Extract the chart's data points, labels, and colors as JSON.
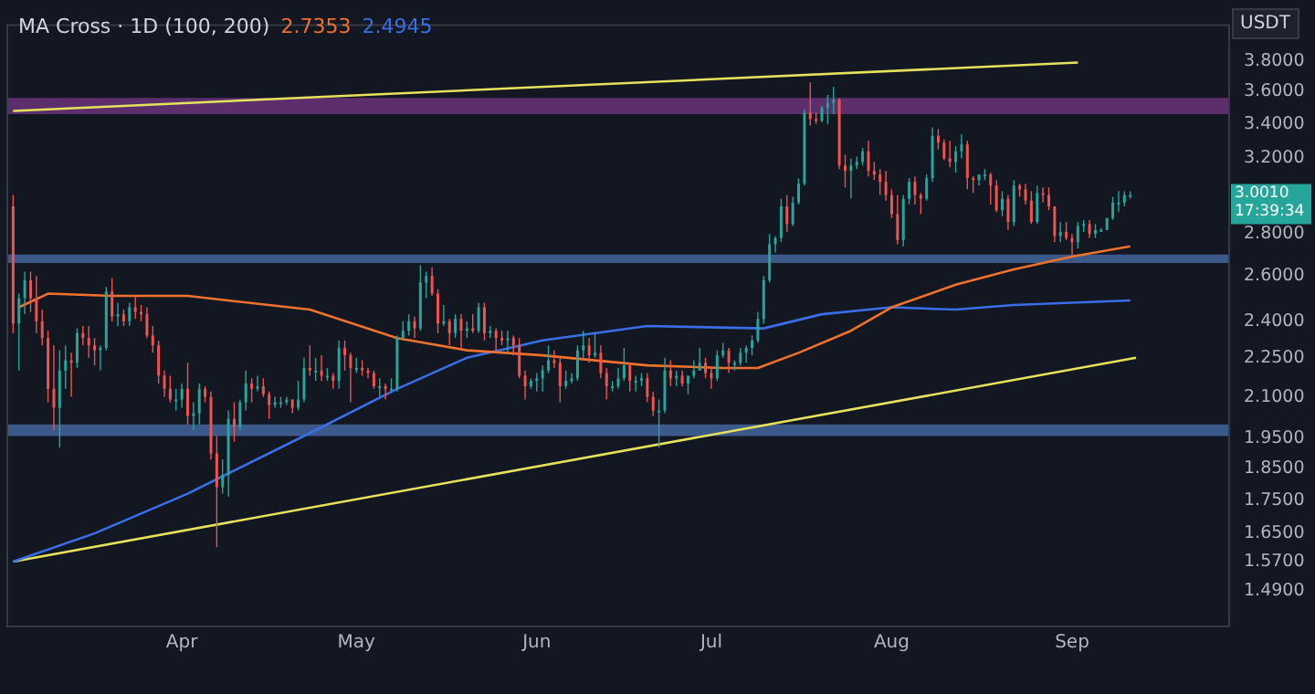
{
  "chart_data": {
    "type": "candlestick",
    "title": "MA Cross · 1D (100, 200)",
    "ylabel": "USDT",
    "log": "y",
    "legend": "top left",
    "ylim": [
      1.4,
      4.05
    ],
    "yticks": [
      {
        "value": 3.8,
        "label": "3.8000"
      },
      {
        "value": 3.6,
        "label": "3.6000"
      },
      {
        "value": 3.4,
        "label": "3.4000"
      },
      {
        "value": 3.2,
        "label": "3.2000"
      },
      {
        "value": 2.8,
        "label": "2.8000"
      },
      {
        "value": 2.6,
        "label": "2.6000"
      },
      {
        "value": 2.4,
        "label": "2.4000"
      },
      {
        "value": 2.25,
        "label": "2.2500"
      },
      {
        "value": 2.1,
        "label": "2.1000"
      },
      {
        "value": 1.95,
        "label": "1.9500"
      },
      {
        "value": 1.85,
        "label": "1.8500"
      },
      {
        "value": 1.75,
        "label": "1.7500"
      },
      {
        "value": 1.65,
        "label": "1.6500"
      },
      {
        "value": 1.57,
        "label": "1.5700"
      },
      {
        "value": 1.49,
        "label": "1.4900"
      }
    ],
    "xlim": [
      "--03-02",
      "--09-28"
    ],
    "xticks": [
      {
        "value": "--04-01",
        "label": "Apr"
      },
      {
        "value": "--05-01",
        "label": "May"
      },
      {
        "value": "--06-01",
        "label": "Jun"
      },
      {
        "value": "--07-01",
        "label": "Jul"
      },
      {
        "value": "--08-01",
        "label": "Aug"
      },
      {
        "value": "--09-01",
        "label": "Sep"
      }
    ],
    "x": [
      "--03-03",
      "--03-04",
      "--03-05",
      "--03-06",
      "--03-07",
      "--03-08",
      "--03-09",
      "--03-10",
      "--03-11",
      "--03-12",
      "--03-13",
      "--03-14",
      "--03-15",
      "--03-16",
      "--03-17",
      "--03-18",
      "--03-19",
      "--03-20",
      "--03-21",
      "--03-22",
      "--03-23",
      "--03-24",
      "--03-25",
      "--03-26",
      "--03-27",
      "--03-28",
      "--03-29",
      "--03-30",
      "--03-31",
      "--04-01",
      "--04-02",
      "--04-03",
      "--04-04",
      "--04-05",
      "--04-06",
      "--04-07",
      "--04-08",
      "--04-09",
      "--04-10",
      "--04-11",
      "--04-12",
      "--04-13",
      "--04-14",
      "--04-15",
      "--04-16",
      "--04-17",
      "--04-18",
      "--04-19",
      "--04-20",
      "--04-21",
      "--04-22",
      "--04-23",
      "--04-24",
      "--04-25",
      "--04-26",
      "--04-27",
      "--04-28",
      "--04-29",
      "--04-30",
      "--05-01",
      "--05-02",
      "--05-03",
      "--05-04",
      "--05-05",
      "--05-06",
      "--05-07",
      "--05-08",
      "--05-09",
      "--05-10",
      "--05-11",
      "--05-12",
      "--05-13",
      "--05-14",
      "--05-15",
      "--05-16",
      "--05-17",
      "--05-18",
      "--05-19",
      "--05-20",
      "--05-21",
      "--05-22",
      "--05-23",
      "--05-24",
      "--05-25",
      "--05-26",
      "--05-27",
      "--05-28",
      "--05-29",
      "--05-30",
      "--05-31",
      "--06-01",
      "--06-02",
      "--06-03",
      "--06-04",
      "--06-05",
      "--06-06",
      "--06-07",
      "--06-08",
      "--06-09",
      "--06-10",
      "--06-11",
      "--06-12",
      "--06-13",
      "--06-14",
      "--06-15",
      "--06-16",
      "--06-17",
      "--06-18",
      "--06-19",
      "--06-20",
      "--06-21",
      "--06-22",
      "--06-23",
      "--06-24",
      "--06-25",
      "--06-26",
      "--06-27",
      "--06-28",
      "--06-29",
      "--06-30",
      "--07-01",
      "--07-02",
      "--07-03",
      "--07-04",
      "--07-05",
      "--07-06",
      "--07-07",
      "--07-08",
      "--07-09",
      "--07-10",
      "--07-11",
      "--07-12",
      "--07-13",
      "--07-14",
      "--07-15",
      "--07-16",
      "--07-17",
      "--07-18",
      "--07-19",
      "--07-20",
      "--07-21",
      "--07-22",
      "--07-23",
      "--07-24",
      "--07-25",
      "--07-26",
      "--07-27",
      "--07-28",
      "--07-29",
      "--07-30",
      "--07-31",
      "--08-01",
      "--08-02",
      "--08-03",
      "--08-04",
      "--08-05",
      "--08-06",
      "--08-07",
      "--08-08",
      "--08-09",
      "--08-10",
      "--08-11",
      "--08-12",
      "--08-13",
      "--08-14",
      "--08-15",
      "--08-16",
      "--08-17",
      "--08-18",
      "--08-19",
      "--08-20",
      "--08-21",
      "--08-22",
      "--08-23",
      "--08-24",
      "--08-25",
      "--08-26",
      "--08-27",
      "--08-28",
      "--08-29",
      "--08-30",
      "--08-31",
      "--09-01",
      "--09-02",
      "--09-03",
      "--09-04",
      "--09-05",
      "--09-06",
      "--09-07",
      "--09-08",
      "--09-09",
      "--09-10",
      "--09-11"
    ],
    "ohlc": [
      [
        2.94,
        3.0,
        2.35,
        2.39
      ],
      [
        2.39,
        2.52,
        2.2,
        2.5
      ],
      [
        2.5,
        2.62,
        2.43,
        2.58
      ],
      [
        2.58,
        2.62,
        2.44,
        2.5
      ],
      [
        2.5,
        2.6,
        2.35,
        2.4
      ],
      [
        2.4,
        2.45,
        2.3,
        2.33
      ],
      [
        2.33,
        2.36,
        2.08,
        2.13
      ],
      [
        2.13,
        2.3,
        1.98,
        2.06
      ],
      [
        2.06,
        2.28,
        1.92,
        2.2
      ],
      [
        2.2,
        2.3,
        2.13,
        2.24
      ],
      [
        2.24,
        2.27,
        2.1,
        2.23
      ],
      [
        2.23,
        2.37,
        2.21,
        2.35
      ],
      [
        2.35,
        2.38,
        2.3,
        2.33
      ],
      [
        2.33,
        2.38,
        2.25,
        2.3
      ],
      [
        2.3,
        2.33,
        2.22,
        2.28
      ],
      [
        2.28,
        2.3,
        2.2,
        2.29
      ],
      [
        2.29,
        2.55,
        2.28,
        2.53
      ],
      [
        2.53,
        2.59,
        2.4,
        2.42
      ],
      [
        2.42,
        2.48,
        2.38,
        2.43
      ],
      [
        2.43,
        2.45,
        2.38,
        2.4
      ],
      [
        2.4,
        2.48,
        2.38,
        2.46
      ],
      [
        2.46,
        2.51,
        2.41,
        2.44
      ],
      [
        2.44,
        2.47,
        2.4,
        2.43
      ],
      [
        2.43,
        2.46,
        2.33,
        2.34
      ],
      [
        2.34,
        2.38,
        2.27,
        2.3
      ],
      [
        2.3,
        2.32,
        2.15,
        2.18
      ],
      [
        2.18,
        2.2,
        2.1,
        2.13
      ],
      [
        2.13,
        2.18,
        2.08,
        2.09
      ],
      [
        2.09,
        2.13,
        2.05,
        2.09
      ],
      [
        2.09,
        2.15,
        2.06,
        2.13
      ],
      [
        2.13,
        2.23,
        2.0,
        2.03
      ],
      [
        2.03,
        2.08,
        1.98,
        2.04
      ],
      [
        2.04,
        2.15,
        2.0,
        2.13
      ],
      [
        2.13,
        2.14,
        2.08,
        2.1
      ],
      [
        2.1,
        2.12,
        1.88,
        1.9
      ],
      [
        1.9,
        1.96,
        1.61,
        1.79
      ],
      [
        1.79,
        1.88,
        1.77,
        1.83
      ],
      [
        1.83,
        2.05,
        1.76,
        2.02
      ],
      [
        2.02,
        2.08,
        1.94,
        1.99
      ],
      [
        1.99,
        2.09,
        1.98,
        2.08
      ],
      [
        2.08,
        2.2,
        2.05,
        2.15
      ],
      [
        2.15,
        2.17,
        2.08,
        2.13
      ],
      [
        2.13,
        2.18,
        2.12,
        2.14
      ],
      [
        2.14,
        2.17,
        2.1,
        2.11
      ],
      [
        2.11,
        2.12,
        2.02,
        2.07
      ],
      [
        2.07,
        2.1,
        2.06,
        2.08
      ],
      [
        2.08,
        2.1,
        2.06,
        2.08
      ],
      [
        2.08,
        2.1,
        2.07,
        2.09
      ],
      [
        2.09,
        2.09,
        2.04,
        2.06
      ],
      [
        2.06,
        2.16,
        2.05,
        2.09
      ],
      [
        2.09,
        2.25,
        2.08,
        2.21
      ],
      [
        2.21,
        2.3,
        2.18,
        2.2
      ],
      [
        2.2,
        2.25,
        2.16,
        2.2
      ],
      [
        2.2,
        2.26,
        2.16,
        2.18
      ],
      [
        2.18,
        2.21,
        2.16,
        2.18
      ],
      [
        2.18,
        2.19,
        2.13,
        2.16
      ],
      [
        2.16,
        2.32,
        2.13,
        2.29
      ],
      [
        2.29,
        2.32,
        2.2,
        2.26
      ],
      [
        2.26,
        2.27,
        2.08,
        2.21
      ],
      [
        2.21,
        2.25,
        2.19,
        2.21
      ],
      [
        2.21,
        2.24,
        2.18,
        2.2
      ],
      [
        2.2,
        2.21,
        2.17,
        2.19
      ],
      [
        2.19,
        2.2,
        2.13,
        2.14
      ],
      [
        2.14,
        2.17,
        2.1,
        2.14
      ],
      [
        2.14,
        2.15,
        2.09,
        2.13
      ],
      [
        2.13,
        2.17,
        2.12,
        2.13
      ],
      [
        2.13,
        2.34,
        2.12,
        2.33
      ],
      [
        2.33,
        2.4,
        2.32,
        2.36
      ],
      [
        2.36,
        2.43,
        2.34,
        2.4
      ],
      [
        2.4,
        2.42,
        2.33,
        2.37
      ],
      [
        2.37,
        2.65,
        2.36,
        2.57
      ],
      [
        2.57,
        2.62,
        2.5,
        2.6
      ],
      [
        2.6,
        2.64,
        2.51,
        2.52
      ],
      [
        2.52,
        2.54,
        2.35,
        2.39
      ],
      [
        2.39,
        2.47,
        2.38,
        2.4
      ],
      [
        2.4,
        2.41,
        2.3,
        2.35
      ],
      [
        2.35,
        2.43,
        2.33,
        2.41
      ],
      [
        2.41,
        2.43,
        2.28,
        2.36
      ],
      [
        2.36,
        2.4,
        2.33,
        2.37
      ],
      [
        2.37,
        2.43,
        2.35,
        2.36
      ],
      [
        2.36,
        2.48,
        2.35,
        2.46
      ],
      [
        2.46,
        2.48,
        2.32,
        2.35
      ],
      [
        2.35,
        2.38,
        2.33,
        2.36
      ],
      [
        2.36,
        2.37,
        2.27,
        2.33
      ],
      [
        2.33,
        2.36,
        2.3,
        2.32
      ],
      [
        2.32,
        2.36,
        2.27,
        2.33
      ],
      [
        2.33,
        2.34,
        2.26,
        2.3
      ],
      [
        2.3,
        2.33,
        2.17,
        2.18
      ],
      [
        2.18,
        2.2,
        2.09,
        2.14
      ],
      [
        2.14,
        2.17,
        2.13,
        2.16
      ],
      [
        2.16,
        2.19,
        2.12,
        2.17
      ],
      [
        2.17,
        2.22,
        2.12,
        2.2
      ],
      [
        2.2,
        2.3,
        2.19,
        2.24
      ],
      [
        2.24,
        2.28,
        2.21,
        2.23
      ],
      [
        2.23,
        2.25,
        2.08,
        2.14
      ],
      [
        2.14,
        2.2,
        2.13,
        2.16
      ],
      [
        2.16,
        2.19,
        2.15,
        2.17
      ],
      [
        2.17,
        2.3,
        2.16,
        2.28
      ],
      [
        2.28,
        2.36,
        2.25,
        2.3
      ],
      [
        2.3,
        2.33,
        2.23,
        2.26
      ],
      [
        2.26,
        2.35,
        2.25,
        2.27
      ],
      [
        2.27,
        2.3,
        2.17,
        2.19
      ],
      [
        2.19,
        2.21,
        2.09,
        2.14
      ],
      [
        2.14,
        2.16,
        2.12,
        2.14
      ],
      [
        2.14,
        2.21,
        2.13,
        2.17
      ],
      [
        2.17,
        2.29,
        2.16,
        2.22
      ],
      [
        2.22,
        2.23,
        2.12,
        2.16
      ],
      [
        2.16,
        2.18,
        2.12,
        2.16
      ],
      [
        2.16,
        2.19,
        2.14,
        2.17
      ],
      [
        2.17,
        2.19,
        2.08,
        2.1
      ],
      [
        2.1,
        2.12,
        2.03,
        2.05
      ],
      [
        2.05,
        2.09,
        1.92,
        2.05
      ],
      [
        2.05,
        2.25,
        2.04,
        2.2
      ],
      [
        2.2,
        2.24,
        2.14,
        2.17
      ],
      [
        2.17,
        2.2,
        2.14,
        2.18
      ],
      [
        2.18,
        2.2,
        2.14,
        2.15
      ],
      [
        2.15,
        2.18,
        2.11,
        2.18
      ],
      [
        2.18,
        2.24,
        2.17,
        2.2
      ],
      [
        2.2,
        2.29,
        2.2,
        2.23
      ],
      [
        2.23,
        2.25,
        2.17,
        2.19
      ],
      [
        2.19,
        2.21,
        2.13,
        2.17
      ],
      [
        2.17,
        2.28,
        2.16,
        2.26
      ],
      [
        2.26,
        2.31,
        2.25,
        2.28
      ],
      [
        2.28,
        2.29,
        2.19,
        2.23
      ],
      [
        2.23,
        2.24,
        2.2,
        2.23
      ],
      [
        2.23,
        2.29,
        2.22,
        2.27
      ],
      [
        2.27,
        2.3,
        2.23,
        2.29
      ],
      [
        2.29,
        2.34,
        2.26,
        2.32
      ],
      [
        2.32,
        2.44,
        2.31,
        2.41
      ],
      [
        2.41,
        2.6,
        2.39,
        2.58
      ],
      [
        2.58,
        2.8,
        2.57,
        2.75
      ],
      [
        2.75,
        2.79,
        2.71,
        2.78
      ],
      [
        2.78,
        2.98,
        2.76,
        2.94
      ],
      [
        2.94,
        3.0,
        2.81,
        2.85
      ],
      [
        2.85,
        2.99,
        2.84,
        2.96
      ],
      [
        2.96,
        3.09,
        2.95,
        3.06
      ],
      [
        3.06,
        3.49,
        3.05,
        3.47
      ],
      [
        3.47,
        3.66,
        3.39,
        3.43
      ],
      [
        3.43,
        3.47,
        3.4,
        3.42
      ],
      [
        3.42,
        3.51,
        3.41,
        3.5
      ],
      [
        3.5,
        3.58,
        3.4,
        3.53
      ],
      [
        3.53,
        3.63,
        3.46,
        3.55
      ],
      [
        3.55,
        3.56,
        3.14,
        3.16
      ],
      [
        3.16,
        3.22,
        3.04,
        3.13
      ],
      [
        3.13,
        3.2,
        2.98,
        3.16
      ],
      [
        3.16,
        3.21,
        3.14,
        3.18
      ],
      [
        3.18,
        3.26,
        3.16,
        3.24
      ],
      [
        3.24,
        3.3,
        3.1,
        3.13
      ],
      [
        3.13,
        3.18,
        3.08,
        3.11
      ],
      [
        3.11,
        3.14,
        3.0,
        3.07
      ],
      [
        3.07,
        3.13,
        2.97,
        3.0
      ],
      [
        3.0,
        3.03,
        2.88,
        2.9
      ],
      [
        2.9,
        3.0,
        2.75,
        2.77
      ],
      [
        2.77,
        3.0,
        2.74,
        2.98
      ],
      [
        2.98,
        3.09,
        2.95,
        3.07
      ],
      [
        3.07,
        3.1,
        2.95,
        3.0
      ],
      [
        3.0,
        3.01,
        2.9,
        2.98
      ],
      [
        2.98,
        3.11,
        2.97,
        3.09
      ],
      [
        3.09,
        3.38,
        3.07,
        3.33
      ],
      [
        3.33,
        3.37,
        3.25,
        3.29
      ],
      [
        3.29,
        3.31,
        3.19,
        3.2
      ],
      [
        3.2,
        3.3,
        3.15,
        3.18
      ],
      [
        3.18,
        3.27,
        3.12,
        3.24
      ],
      [
        3.24,
        3.34,
        3.2,
        3.28
      ],
      [
        3.28,
        3.3,
        3.03,
        3.09
      ],
      [
        3.09,
        3.1,
        3.01,
        3.08
      ],
      [
        3.08,
        3.11,
        3.05,
        3.11
      ],
      [
        3.11,
        3.14,
        3.08,
        3.11
      ],
      [
        3.11,
        3.12,
        2.95,
        3.05
      ],
      [
        3.05,
        3.08,
        2.91,
        2.92
      ],
      [
        2.92,
        3.02,
        2.89,
        2.98
      ],
      [
        2.98,
        3.0,
        2.82,
        2.86
      ],
      [
        2.86,
        3.08,
        2.84,
        3.05
      ],
      [
        3.05,
        3.06,
        2.99,
        3.03
      ],
      [
        3.03,
        3.06,
        2.95,
        2.97
      ],
      [
        2.97,
        3.02,
        2.85,
        2.86
      ],
      [
        2.86,
        3.05,
        2.85,
        3.01
      ],
      [
        3.01,
        3.04,
        2.96,
        3.0
      ],
      [
        3.0,
        3.04,
        2.92,
        2.94
      ],
      [
        2.94,
        2.94,
        2.76,
        2.79
      ],
      [
        2.79,
        2.86,
        2.76,
        2.81
      ],
      [
        2.81,
        2.86,
        2.77,
        2.78
      ],
      [
        2.78,
        2.8,
        2.7,
        2.76
      ],
      [
        2.76,
        2.86,
        2.73,
        2.84
      ],
      [
        2.84,
        2.87,
        2.81,
        2.85
      ],
      [
        2.85,
        2.87,
        2.78,
        2.8
      ],
      [
        2.8,
        2.85,
        2.78,
        2.82
      ],
      [
        2.82,
        2.83,
        2.81,
        2.82
      ],
      [
        2.82,
        2.88,
        2.82,
        2.88
      ],
      [
        2.88,
        2.99,
        2.87,
        2.96
      ],
      [
        2.96,
        3.02,
        2.91,
        2.96
      ],
      [
        2.96,
        3.02,
        2.94,
        3.0
      ],
      [
        3.0,
        3.02,
        2.98,
        3.0
      ]
    ],
    "series": [
      {
        "type": "line",
        "name": "2.7353",
        "color": "#f0712c",
        "x": [
          "--03-04",
          "--03-09",
          "--03-20",
          "--04-02",
          "--04-23",
          "--05-08",
          "--05-20",
          "--06-02",
          "--06-20",
          "--07-03",
          "--07-09",
          "--07-16",
          "--07-25",
          "--08-01",
          "--08-12",
          "--08-22",
          "--09-01",
          "--09-11"
        ],
        "values": [
          2.46,
          2.52,
          2.51,
          2.51,
          2.45,
          2.33,
          2.28,
          2.26,
          2.22,
          2.21,
          2.21,
          2.27,
          2.36,
          2.46,
          2.56,
          2.63,
          2.69,
          2.74
        ]
      },
      {
        "type": "line",
        "name": "2.4945",
        "color": "#3a6ee8",
        "x": [
          "--03-03",
          "--03-17",
          "--04-02",
          "--04-23",
          "--05-08",
          "--05-20",
          "--06-02",
          "--06-14",
          "--06-20",
          "--07-10",
          "--07-20",
          "--08-01",
          "--08-12",
          "--08-22",
          "--09-11"
        ],
        "values": [
          1.57,
          1.65,
          1.77,
          1.97,
          2.13,
          2.25,
          2.32,
          2.36,
          2.38,
          2.37,
          2.43,
          2.46,
          2.45,
          2.47,
          2.49
        ]
      },
      {
        "type": "line",
        "color": "#e6e25c",
        "x": [
          "--03-03",
          "--09-02"
        ],
        "values": [
          3.48,
          3.79
        ]
      },
      {
        "type": "line",
        "color": "#e6e25c",
        "x": [
          "--03-03",
          "--09-12"
        ],
        "values": [
          1.57,
          2.25
        ]
      }
    ],
    "bands": [
      {
        "axis": "y",
        "from": 3.46,
        "to": 3.56,
        "color": "#5c2e6c"
      },
      {
        "axis": "y",
        "from": 2.66,
        "to": 2.7,
        "color": "#3b5a8a"
      },
      {
        "axis": "y",
        "from": 1.96,
        "to": 2.0,
        "color": "#3b5a8a"
      }
    ],
    "annotations": [
      "3.0010",
      "17:39:34"
    ]
  }
}
